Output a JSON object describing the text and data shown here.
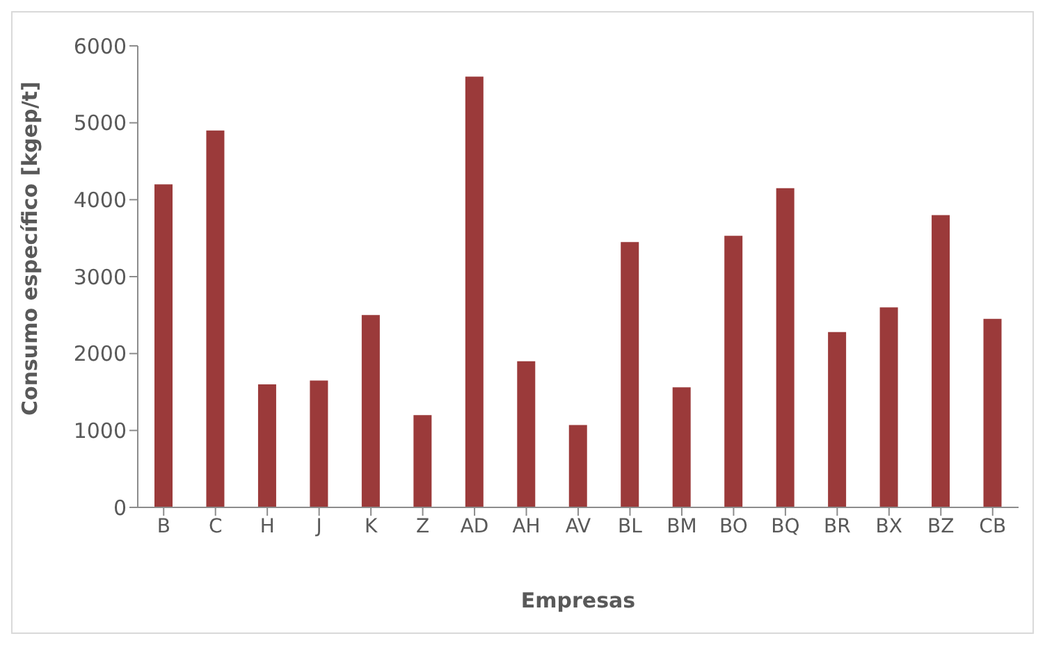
{
  "chart_data": {
    "type": "bar",
    "xlabel": "Empresas",
    "ylabel": "Consumo específico [kgep/t]",
    "categories": [
      "B",
      "C",
      "H",
      "J",
      "K",
      "Z",
      "AD",
      "AH",
      "AV",
      "BL",
      "BM",
      "BO",
      "BQ",
      "BR",
      "BX",
      "BZ",
      "CB"
    ],
    "values": [
      4200,
      4900,
      1600,
      1650,
      2500,
      1200,
      5600,
      1900,
      1070,
      3450,
      1560,
      3530,
      4150,
      2280,
      2600,
      3800,
      2450
    ],
    "color": "#9b3a3a",
    "ylim": [
      0,
      6000
    ],
    "yticks": [
      0,
      1000,
      2000,
      3000,
      4000,
      5000,
      6000
    ],
    "grid": false,
    "legend": false
  }
}
